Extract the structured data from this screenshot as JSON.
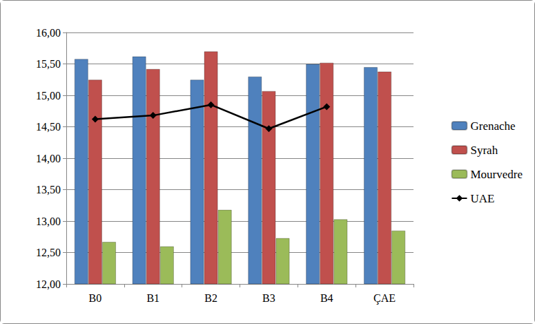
{
  "chart_data": {
    "type": "bar",
    "categories": [
      "B0",
      "B1",
      "B2",
      "B3",
      "B4",
      "ÇAE"
    ],
    "series": [
      {
        "name": "Grenache",
        "type": "bar",
        "color": "#4f81bd",
        "values": [
          15.58,
          15.62,
          15.25,
          15.3,
          15.5,
          15.45
        ]
      },
      {
        "name": "Syrah",
        "type": "bar",
        "color": "#c0504d",
        "values": [
          15.25,
          15.42,
          15.7,
          15.07,
          15.52,
          15.38
        ]
      },
      {
        "name": "Mourvedre",
        "type": "bar",
        "color": "#9bbb59",
        "values": [
          12.67,
          12.6,
          13.18,
          12.73,
          13.03,
          12.85
        ]
      },
      {
        "name": "UAE",
        "type": "line",
        "color": "#000000",
        "marker": "diamond",
        "values": [
          14.62,
          14.68,
          14.85,
          14.47,
          14.82,
          null
        ]
      }
    ],
    "ylim": [
      12,
      16
    ],
    "yticks": [
      {
        "value": 12,
        "label": "12,00"
      },
      {
        "value": 12.5,
        "label": "12,50"
      },
      {
        "value": 13,
        "label": "13,00"
      },
      {
        "value": 13.5,
        "label": "13,50"
      },
      {
        "value": 14,
        "label": "14,00"
      },
      {
        "value": 14.5,
        "label": "14,50"
      },
      {
        "value": 15,
        "label": "15,00"
      },
      {
        "value": 15.5,
        "label": "15,50"
      },
      {
        "value": 16,
        "label": "16,00"
      }
    ],
    "grid": true,
    "legend": "right"
  }
}
